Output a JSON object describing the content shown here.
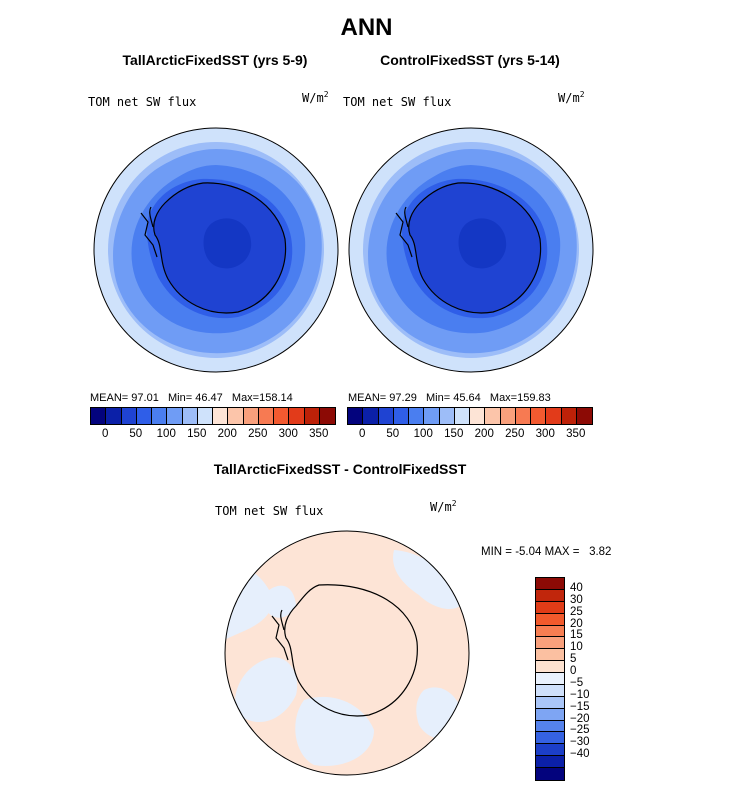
{
  "title": "ANN",
  "panels": [
    {
      "title": "TallArcticFixedSST (yrs 5-9)",
      "field": "TOM net SW flux",
      "units_base": "W/m",
      "units_exp": "2",
      "stats": {
        "mean_label": "MEAN=",
        "mean": "97.01",
        "min_label": "Min=",
        "min": "46.47",
        "max_label": "Max=",
        "max": "158.14"
      }
    },
    {
      "title": "ControlFixedSST (yrs 5-14)",
      "field": "TOM net SW flux",
      "units_base": "W/m",
      "units_exp": "2",
      "stats": {
        "mean_label": "MEAN=",
        "mean": "97.29",
        "min_label": "Min=",
        "min": "45.64",
        "max_label": "Max=",
        "max": "159.83"
      }
    }
  ],
  "colorbar": {
    "colors": [
      "#03037d",
      "#0b20a8",
      "#1f43d2",
      "#2f5ee8",
      "#4a7ef0",
      "#6f9cf5",
      "#9dbdf8",
      "#cfe2fb",
      "#fde4d6",
      "#fcc5aa",
      "#f9a07c",
      "#f77a52",
      "#f35a30",
      "#e23b1a",
      "#bd2108",
      "#8c0a05"
    ],
    "ticks": [
      "0",
      "50",
      "100",
      "150",
      "200",
      "250",
      "300",
      "350"
    ]
  },
  "diff_panel": {
    "title": "TallArcticFixedSST - ControlFixedSST",
    "field": "TOM net SW flux",
    "units_base": "W/m",
    "units_exp": "2",
    "min_label": "MIN =",
    "min": "-5.04",
    "max_label": "MAX =",
    "max": "3.82",
    "colorbar": {
      "colors": [
        "#8c0a05",
        "#c1260c",
        "#e03c17",
        "#f25a2c",
        "#f77e52",
        "#f9a07c",
        "#fbc0a1",
        "#fde2d0",
        "#e9f1fd",
        "#cfe0fb",
        "#aac6f8",
        "#7ea5f3",
        "#5582ec",
        "#3562e2",
        "#1c3fc8",
        "#0b20a8",
        "#03037d"
      ],
      "labels": [
        "40",
        "30",
        "25",
        "20",
        "15",
        "10",
        "5",
        "0",
        "−5",
        "−10",
        "−15",
        "−20",
        "−25",
        "−30",
        "−40"
      ]
    }
  }
}
